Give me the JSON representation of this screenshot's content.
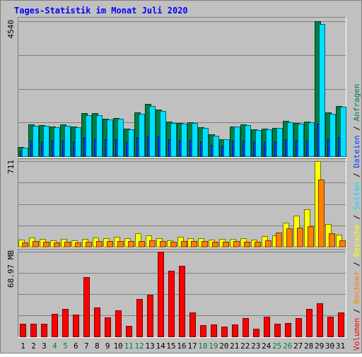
{
  "colors": {
    "background": "#c0c0c0",
    "title": "#0000ff",
    "anfragen": "#008040",
    "dateien": "#0040ff",
    "seiten": "#00e0ff",
    "besuche": "#ffff00",
    "rechner": "#ff8000",
    "volumen": "#ff0000",
    "weekend_day": "#008040",
    "weekday": "#000000"
  },
  "chart_data": {
    "type": "bar",
    "title": "Tages-Statistik im Monat Juli 2020",
    "categories": [
      "1",
      "2",
      "3",
      "4",
      "5",
      "6",
      "7",
      "8",
      "9",
      "10",
      "11",
      "12",
      "13",
      "14",
      "15",
      "16",
      "17",
      "18",
      "19",
      "20",
      "21",
      "22",
      "23",
      "24",
      "25",
      "26",
      "27",
      "28",
      "29",
      "30",
      "31"
    ],
    "weekend_days": [
      "4",
      "5",
      "11",
      "12",
      "18",
      "19",
      "25",
      "26"
    ],
    "panels": [
      {
        "id": "top",
        "max_label": "4540",
        "ymax": 4540,
        "legend": [
          "Anfragen",
          "Dateien",
          "Seiten"
        ],
        "series": [
          {
            "name": "Anfragen",
            "values": [
              310,
              1060,
              1050,
              1000,
              1060,
              1010,
              1450,
              1460,
              1270,
              1290,
              930,
              1470,
              1750,
              1570,
              1160,
              1120,
              1140,
              970,
              730,
              580,
              1010,
              1060,
              910,
              930,
              960,
              1190,
              1120,
              1170,
              4540,
              1470,
              1690
            ]
          },
          {
            "name": "Dateien",
            "values": [
              170,
              520,
              500,
              520,
              520,
              500,
              640,
              600,
              560,
              570,
              480,
              640,
              700,
              660,
              560,
              550,
              550,
              510,
              390,
              350,
              520,
              520,
              480,
              500,
              510,
              560,
              550,
              550,
              1100,
              600,
              640
            ]
          },
          {
            "name": "Seiten",
            "values": [
              290,
              1030,
              1020,
              980,
              1020,
              970,
              1380,
              1390,
              1230,
              1250,
              910,
              1430,
              1690,
              1520,
              1120,
              1090,
              1110,
              940,
              700,
              560,
              990,
              1050,
              880,
              900,
              960,
              1150,
              1090,
              1140,
              4440,
              1420,
              1660
            ]
          }
        ]
      },
      {
        "id": "middle",
        "max_label": "711",
        "ymax": 711,
        "legend": [
          "Besuche",
          "Rechner"
        ],
        "series": [
          {
            "name": "Besuche",
            "values": [
              60,
              75,
              65,
              50,
              65,
              50,
              65,
              75,
              70,
              80,
              70,
              110,
              95,
              70,
              55,
              85,
              70,
              70,
              60,
              65,
              65,
              70,
              60,
              90,
              95,
              200,
              260,
              310,
              711,
              190,
              100
            ]
          },
          {
            "name": "Rechner",
            "values": [
              35,
              45,
              40,
              35,
              40,
              35,
              40,
              45,
              45,
              45,
              45,
              45,
              55,
              45,
              40,
              45,
              45,
              45,
              40,
              40,
              45,
              40,
              40,
              55,
              120,
              155,
              160,
              170,
              560,
              110,
              50
            ]
          }
        ]
      },
      {
        "id": "bottom",
        "max_label": "68.97 MB",
        "ymax": 68.97,
        "legend": [
          "Volumen"
        ],
        "series": [
          {
            "name": "Volumen",
            "values": [
              10.1,
              10.1,
              10.4,
              18.5,
              22.6,
              17.9,
              48.3,
              23.3,
              15.4,
              21.2,
              8.4,
              30.5,
              34.0,
              68.97,
              53.3,
              57.7,
              19.5,
              9.1,
              9.7,
              7.8,
              9.5,
              14.9,
              6.4,
              16.1,
              10.5,
              10.9,
              14.9,
              22.6,
              27.1,
              16.3,
              19.5
            ]
          }
        ]
      }
    ],
    "right_legend": [
      {
        "label": "Volumen",
        "color_key": "volumen"
      },
      {
        "label": "Rechner",
        "color_key": "rechner"
      },
      {
        "label": "Besuche",
        "color_key": "besuche"
      },
      {
        "label": "Seiten",
        "color_key": "seiten"
      },
      {
        "label": "Dateien",
        "color_key": "dateien"
      },
      {
        "label": "Anfragen",
        "color_key": "anfragen"
      }
    ]
  }
}
